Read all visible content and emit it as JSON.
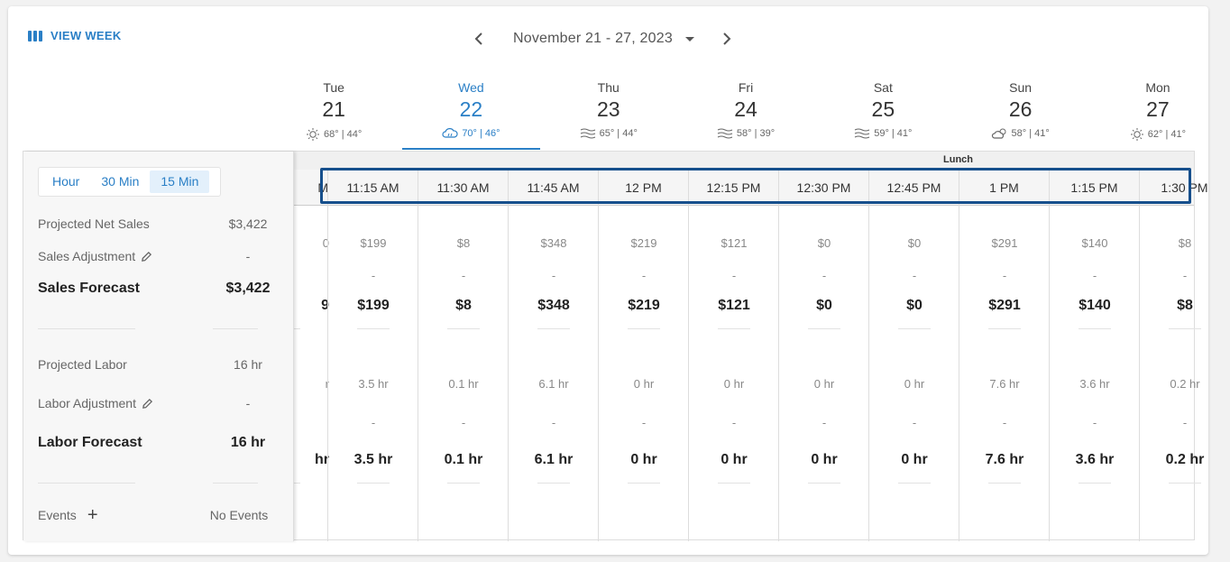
{
  "header": {
    "view_week_label": "VIEW WEEK",
    "date_range": "November 21 - 27, 2023"
  },
  "days": [
    {
      "name": "Tue",
      "num": "21",
      "weather": "68° | 44°",
      "icon": "sun-icon"
    },
    {
      "name": "Wed",
      "num": "22",
      "weather": "70° | 46°",
      "icon": "cloud-rain-icon",
      "active": true
    },
    {
      "name": "Thu",
      "num": "23",
      "weather": "65° | 44°",
      "icon": "wind-icon"
    },
    {
      "name": "Fri",
      "num": "24",
      "weather": "58° | 39°",
      "icon": "wind-icon"
    },
    {
      "name": "Sat",
      "num": "25",
      "weather": "59° | 41°",
      "icon": "wind-icon"
    },
    {
      "name": "Sun",
      "num": "26",
      "weather": "58° | 41°",
      "icon": "partly-cloudy-icon"
    },
    {
      "name": "Mon",
      "num": "27",
      "weather": "62° | 41°",
      "icon": "sun-icon"
    }
  ],
  "granularity": {
    "options": [
      "Hour",
      "30 Min",
      "15 Min"
    ],
    "selected": "15 Min"
  },
  "summary": {
    "projected_net_sales_label": "Projected Net Sales",
    "projected_net_sales": "$3,422",
    "sales_adjustment_label": "Sales Adjustment",
    "sales_adjustment": "-",
    "sales_forecast_label": "Sales Forecast",
    "sales_forecast": "$3,422",
    "projected_labor_label": "Projected Labor",
    "projected_labor": "16 hr",
    "labor_adjustment_label": "Labor Adjustment",
    "labor_adjustment": "-",
    "labor_forecast_label": "Labor Forecast",
    "labor_forecast": "16 hr",
    "events_label": "Events",
    "events_value": "No Events"
  },
  "daypart_label": "Lunch",
  "partial_column": {
    "time": "M",
    "sales": "0",
    "sales_bold": "9",
    "labor": "r",
    "labor_bold": "hr"
  },
  "intervals": [
    {
      "time": "11:15 AM",
      "sales": "$199",
      "adj": "-",
      "forecast": "$199",
      "labor": "3.5 hr",
      "ladj": "-",
      "lforecast": "3.5 hr"
    },
    {
      "time": "11:30 AM",
      "sales": "$8",
      "adj": "-",
      "forecast": "$8",
      "labor": "0.1 hr",
      "ladj": "-",
      "lforecast": "0.1 hr"
    },
    {
      "time": "11:45 AM",
      "sales": "$348",
      "adj": "-",
      "forecast": "$348",
      "labor": "6.1 hr",
      "ladj": "-",
      "lforecast": "6.1 hr"
    },
    {
      "time": "12 PM",
      "sales": "$219",
      "adj": "-",
      "forecast": "$219",
      "labor": "0 hr",
      "ladj": "-",
      "lforecast": "0 hr"
    },
    {
      "time": "12:15 PM",
      "sales": "$121",
      "adj": "-",
      "forecast": "$121",
      "labor": "0 hr",
      "ladj": "-",
      "lforecast": "0 hr"
    },
    {
      "time": "12:30 PM",
      "sales": "$0",
      "adj": "-",
      "forecast": "$0",
      "labor": "0 hr",
      "ladj": "-",
      "lforecast": "0 hr"
    },
    {
      "time": "12:45 PM",
      "sales": "$0",
      "adj": "-",
      "forecast": "$0",
      "labor": "0 hr",
      "ladj": "-",
      "lforecast": "0 hr"
    },
    {
      "time": "1 PM",
      "sales": "$291",
      "adj": "-",
      "forecast": "$291",
      "labor": "7.6 hr",
      "ladj": "-",
      "lforecast": "7.6 hr"
    },
    {
      "time": "1:15 PM",
      "sales": "$140",
      "adj": "-",
      "forecast": "$140",
      "labor": "3.6 hr",
      "ladj": "-",
      "lforecast": "3.6 hr"
    },
    {
      "time": "1:30 PM",
      "sales": "$8",
      "adj": "-",
      "forecast": "$8",
      "labor": "0.2 hr",
      "ladj": "-",
      "lforecast": "0.2 hr"
    }
  ],
  "colors": {
    "accent": "#2a7fc6",
    "highlight_border": "#164f8c"
  }
}
